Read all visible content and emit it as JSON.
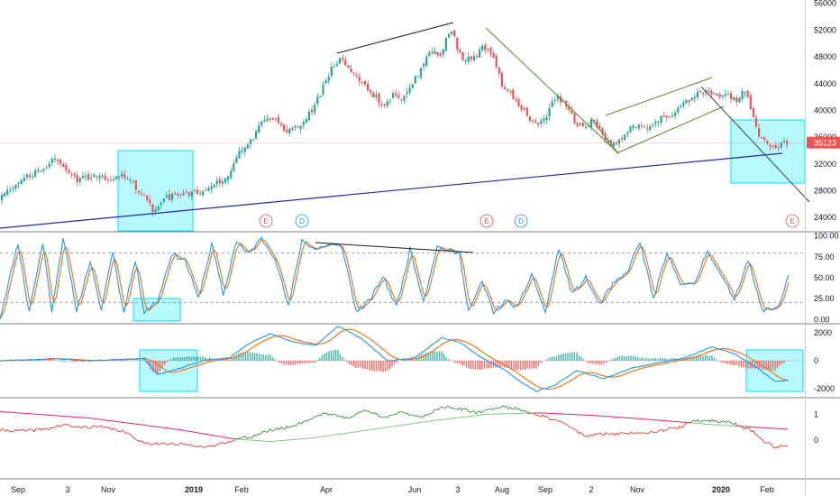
{
  "colors": {
    "up": "#26a69a",
    "down": "#ef5350",
    "stoch_k": "#2196f3",
    "stoch_d": "#ff6d00",
    "macd": "#2196f3",
    "signal": "#ff6d00",
    "hist_up": "#26a69a",
    "hist_down": "#ef5350",
    "rs_above": "#388e3c",
    "rs_below": "#e53935",
    "rs_ma": "#e91e63",
    "highlight": "#00e5ff",
    "support": "#2727a8",
    "channel": "#558b2f",
    "trendline": "#131722",
    "price_line": "#ef5350",
    "divider": "#787b86"
  },
  "chart_data": [
    {
      "type": "candlestick",
      "name": "price",
      "y_ticks": [
        "56000",
        "52000",
        "48000",
        "44000",
        "40000",
        "36000",
        "32000",
        "28000",
        "24000"
      ],
      "ylim": [
        22000,
        56500
      ],
      "last_price": "35123",
      "last_price_value": 35123,
      "anchors": [
        [
          0,
          26500
        ],
        [
          10,
          27500
        ],
        [
          25,
          29500
        ],
        [
          40,
          30500
        ],
        [
          55,
          31200
        ],
        [
          65,
          33200
        ],
        [
          75,
          31500
        ],
        [
          90,
          29500
        ],
        [
          110,
          30500
        ],
        [
          125,
          29800
        ],
        [
          140,
          30500
        ],
        [
          150,
          29000
        ],
        [
          165,
          26600
        ],
        [
          175,
          24800
        ],
        [
          185,
          26800
        ],
        [
          200,
          27400
        ],
        [
          215,
          27700
        ],
        [
          230,
          28000
        ],
        [
          245,
          29300
        ],
        [
          255,
          30000
        ],
        [
          270,
          34000
        ],
        [
          285,
          36000
        ],
        [
          295,
          38500
        ],
        [
          310,
          38800
        ],
        [
          320,
          37000
        ],
        [
          335,
          37800
        ],
        [
          350,
          40000
        ],
        [
          360,
          43000
        ],
        [
          370,
          46000
        ],
        [
          380,
          47500
        ],
        [
          390,
          46500
        ],
        [
          400,
          44500
        ],
        [
          410,
          43500
        ],
        [
          420,
          42000
        ],
        [
          430,
          40500
        ],
        [
          440,
          43000
        ],
        [
          450,
          41500
        ],
        [
          460,
          44000
        ],
        [
          470,
          46000
        ],
        [
          480,
          49000
        ],
        [
          490,
          48000
        ],
        [
          500,
          51000
        ],
        [
          505,
          52200
        ],
        [
          512,
          48500
        ],
        [
          520,
          47500
        ],
        [
          530,
          48000
        ],
        [
          540,
          49500
        ],
        [
          550,
          48500
        ],
        [
          560,
          44000
        ],
        [
          570,
          42500
        ],
        [
          580,
          40500
        ],
        [
          590,
          39000
        ],
        [
          600,
          37500
        ],
        [
          610,
          39500
        ],
        [
          620,
          42000
        ],
        [
          630,
          41000
        ],
        [
          640,
          38500
        ],
        [
          650,
          37500
        ],
        [
          660,
          38500
        ],
        [
          670,
          37000
        ],
        [
          680,
          34500
        ],
        [
          690,
          35500
        ],
        [
          700,
          37000
        ],
        [
          710,
          38000
        ],
        [
          720,
          37500
        ],
        [
          730,
          38500
        ],
        [
          740,
          39000
        ],
        [
          750,
          39500
        ],
        [
          760,
          40500
        ],
        [
          770,
          42000
        ],
        [
          780,
          43000
        ],
        [
          790,
          42500
        ],
        [
          800,
          42000
        ],
        [
          810,
          42500
        ],
        [
          820,
          41500
        ],
        [
          830,
          43000
        ],
        [
          838,
          39500
        ],
        [
          845,
          36500
        ],
        [
          852,
          35500
        ],
        [
          858,
          34300
        ],
        [
          865,
          34800
        ],
        [
          873,
          35123
        ]
      ]
    },
    {
      "type": "line",
      "name": "stochastic",
      "y_ticks": [
        "100.00",
        "75.00",
        "50.00",
        "25.00",
        "0.00"
      ],
      "ylim": [
        -4,
        104
      ],
      "levels": [
        20,
        80
      ],
      "cycles": [
        [
          0,
          2
        ],
        [
          20,
          92
        ],
        [
          32,
          8
        ],
        [
          48,
          94
        ],
        [
          57,
          8
        ],
        [
          70,
          98
        ],
        [
          85,
          10
        ],
        [
          100,
          70
        ],
        [
          112,
          10
        ],
        [
          125,
          82
        ],
        [
          137,
          8
        ],
        [
          150,
          70
        ],
        [
          160,
          10
        ],
        [
          175,
          22
        ],
        [
          190,
          78
        ],
        [
          205,
          72
        ],
        [
          220,
          25
        ],
        [
          235,
          90
        ],
        [
          248,
          28
        ],
        [
          262,
          95
        ],
        [
          275,
          78
        ],
        [
          290,
          97
        ],
        [
          305,
          75
        ],
        [
          320,
          15
        ],
        [
          335,
          95
        ],
        [
          350,
          84
        ],
        [
          365,
          90
        ],
        [
          380,
          86
        ],
        [
          395,
          10
        ],
        [
          410,
          22
        ],
        [
          425,
          52
        ],
        [
          440,
          15
        ],
        [
          455,
          84
        ],
        [
          470,
          22
        ],
        [
          485,
          87
        ],
        [
          500,
          82
        ],
        [
          510,
          78
        ],
        [
          520,
          10
        ],
        [
          535,
          45
        ],
        [
          548,
          8
        ],
        [
          560,
          22
        ],
        [
          575,
          15
        ],
        [
          590,
          55
        ],
        [
          605,
          8
        ],
        [
          620,
          86
        ],
        [
          635,
          30
        ],
        [
          650,
          50
        ],
        [
          665,
          18
        ],
        [
          680,
          42
        ],
        [
          695,
          55
        ],
        [
          710,
          93
        ],
        [
          725,
          25
        ],
        [
          740,
          78
        ],
        [
          755,
          45
        ],
        [
          770,
          40
        ],
        [
          785,
          84
        ],
        [
          800,
          52
        ],
        [
          815,
          25
        ],
        [
          830,
          72
        ],
        [
          845,
          12
        ],
        [
          858,
          12
        ],
        [
          866,
          20
        ],
        [
          875,
          55
        ]
      ]
    },
    {
      "type": "line",
      "name": "macd",
      "y_ticks": [
        "2000",
        "0",
        "-2000"
      ],
      "ylim": [
        -2600,
        2600
      ],
      "anchors": [
        [
          0,
          0
        ],
        [
          60,
          150
        ],
        [
          100,
          0
        ],
        [
          160,
          180
        ],
        [
          175,
          -1000
        ],
        [
          195,
          -650
        ],
        [
          225,
          0
        ],
        [
          255,
          220
        ],
        [
          275,
          1200
        ],
        [
          300,
          1950
        ],
        [
          325,
          1350
        ],
        [
          350,
          1100
        ],
        [
          375,
          2500
        ],
        [
          400,
          1650
        ],
        [
          430,
          0
        ],
        [
          460,
          200
        ],
        [
          490,
          1650
        ],
        [
          510,
          1350
        ],
        [
          535,
          200
        ],
        [
          560,
          -650
        ],
        [
          575,
          -1400
        ],
        [
          595,
          -2200
        ],
        [
          615,
          -1800
        ],
        [
          640,
          -700
        ],
        [
          670,
          -1300
        ],
        [
          700,
          -550
        ],
        [
          730,
          -150
        ],
        [
          760,
          200
        ],
        [
          790,
          1000
        ],
        [
          815,
          500
        ],
        [
          840,
          -500
        ],
        [
          860,
          -1500
        ],
        [
          875,
          -1400
        ]
      ]
    },
    {
      "type": "line",
      "name": "relative-strength",
      "y_ticks": [
        "1",
        "0"
      ],
      "ylim": [
        -1.45,
        1.6
      ],
      "anchors": [
        [
          0,
          0.38
        ],
        [
          30,
          0.36
        ],
        [
          55,
          0.45
        ],
        [
          70,
          0.6
        ],
        [
          85,
          0.5
        ],
        [
          110,
          0.52
        ],
        [
          135,
          0.36
        ],
        [
          160,
          -0.1
        ],
        [
          190,
          -0.15
        ],
        [
          215,
          -0.18
        ],
        [
          230,
          -0.3
        ],
        [
          245,
          -0.12
        ],
        [
          260,
          0.02
        ],
        [
          280,
          0.15
        ],
        [
          300,
          0.38
        ],
        [
          320,
          0.5
        ],
        [
          340,
          0.75
        ],
        [
          360,
          1.05
        ],
        [
          385,
          0.85
        ],
        [
          405,
          1.15
        ],
        [
          425,
          0.9
        ],
        [
          445,
          1.05
        ],
        [
          470,
          0.9
        ],
        [
          490,
          1.3
        ],
        [
          510,
          1.2
        ],
        [
          530,
          1.05
        ],
        [
          555,
          1.3
        ],
        [
          575,
          1.2
        ],
        [
          600,
          0.95
        ],
        [
          625,
          0.65
        ],
        [
          650,
          0.15
        ],
        [
          670,
          0.25
        ],
        [
          690,
          0.25
        ],
        [
          710,
          0.3
        ],
        [
          730,
          0.35
        ],
        [
          755,
          0.5
        ],
        [
          770,
          0.75
        ],
        [
          790,
          0.75
        ],
        [
          810,
          0.7
        ],
        [
          835,
          0.35
        ],
        [
          848,
          -0.05
        ],
        [
          860,
          -0.25
        ],
        [
          875,
          -0.2
        ]
      ],
      "ma_anchors": [
        [
          0,
          1.1
        ],
        [
          100,
          0.85
        ],
        [
          200,
          0.4
        ],
        [
          260,
          0.05
        ],
        [
          300,
          -0.05
        ],
        [
          350,
          0.1
        ],
        [
          420,
          0.45
        ],
        [
          480,
          0.75
        ],
        [
          540,
          1.0
        ],
        [
          600,
          1.05
        ],
        [
          660,
          0.95
        ],
        [
          720,
          0.8
        ],
        [
          790,
          0.6
        ],
        [
          875,
          0.42
        ]
      ]
    }
  ],
  "x_axis": {
    "ticks": [
      {
        "label": "Sep",
        "x": 20
      },
      {
        "label": "3",
        "x": 75
      },
      {
        "label": "Nov",
        "x": 120
      },
      {
        "label": "2019",
        "x": 215,
        "bold": true
      },
      {
        "label": "Feb",
        "x": 268
      },
      {
        "label": "Apr",
        "x": 362
      },
      {
        "label": "Jun",
        "x": 460
      },
      {
        "label": "3",
        "x": 508
      },
      {
        "label": "Aug",
        "x": 557
      },
      {
        "label": "Sep",
        "x": 605
      },
      {
        "label": "2",
        "x": 656
      },
      {
        "label": "Nov",
        "x": 707
      },
      {
        "label": "2020",
        "x": 800,
        "bold": true
      },
      {
        "label": "Feb",
        "x": 851
      }
    ]
  },
  "events": [
    {
      "label": "E",
      "kind": "earnings",
      "color": "#ef5350"
    },
    {
      "label": "D",
      "kind": "dividend",
      "color": "#2196f3"
    },
    {
      "label": "E",
      "kind": "earnings",
      "color": "#ef5350"
    },
    {
      "label": "D",
      "kind": "dividend",
      "color": "#2196f3"
    },
    {
      "label": "E",
      "kind": "earnings",
      "color": "#ef5350"
    }
  ]
}
